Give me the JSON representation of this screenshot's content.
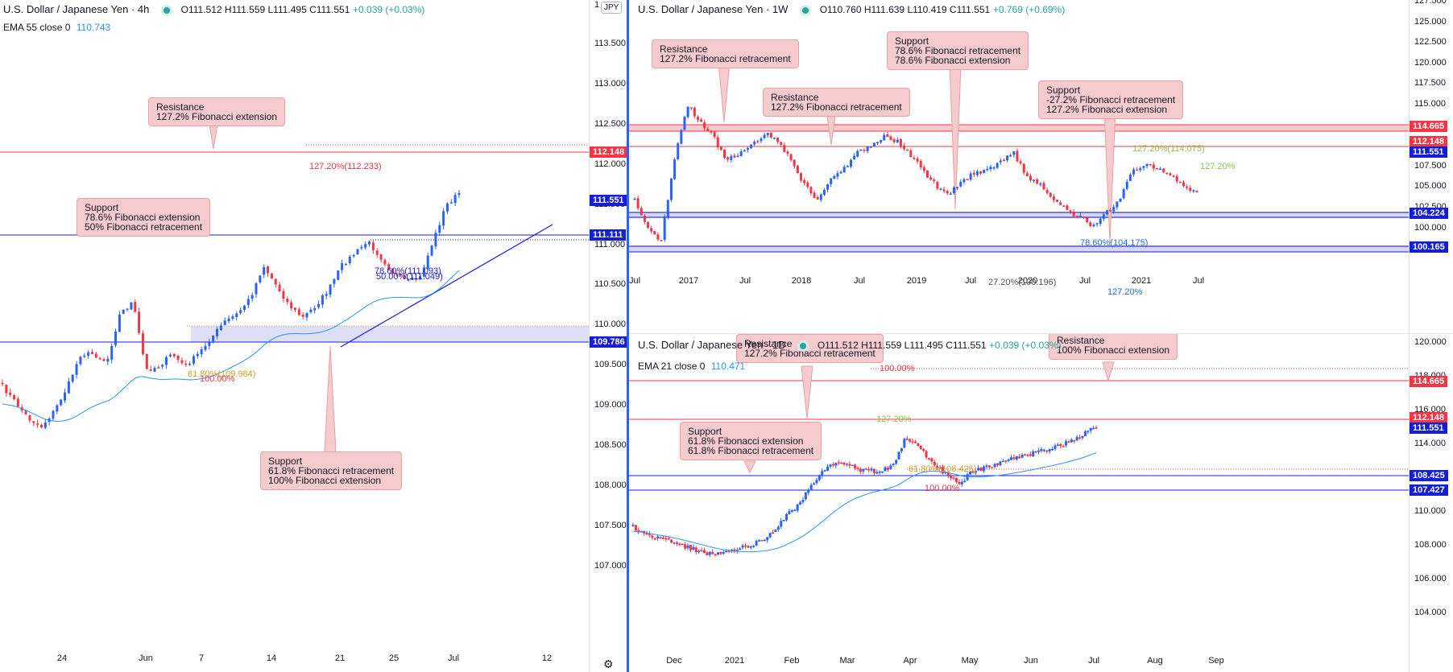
{
  "left_chart": {
    "title": "U.S. Dollar / Japanese Yen · 4h",
    "ohlc": "O111.512 H111.559 L111.495 C111.551",
    "change": "+0.039 (+0.03%)",
    "ema_label": "EMA 55 close 0",
    "ema_value": "110.743",
    "currency_badge": "JPY",
    "y_ticks": [
      "113.500",
      "113.000",
      "112.500",
      "112.000",
      "111.500",
      "111.000",
      "110.500",
      "110.000",
      "109.500",
      "109.000",
      "108.500",
      "108.000",
      "107.500",
      "107.000"
    ],
    "y_top_tick": "1",
    "x_ticks": [
      "24",
      "Jun",
      "7",
      "14",
      "21",
      "25",
      "Jul",
      "12"
    ],
    "price_tags": [
      {
        "value": "112.148",
        "color": "red"
      },
      {
        "value": "111.551",
        "color": "navy"
      },
      {
        "value": "111.111",
        "color": "navy"
      },
      {
        "value": "109.786",
        "color": "navy"
      }
    ],
    "fib_labels": {
      "ext_127": "127.20%(112.233)",
      "fib_786": "78.60%(111.093)",
      "fib_50": "50.00%(111.049)",
      "fib_618": "61.80%(109.984)",
      "fib_100": "100.00%"
    },
    "callouts": [
      {
        "line1": "Resistance",
        "line2": "127.2% Fibonacci extension"
      },
      {
        "line1": "Support",
        "line2": "78.6% Fibonacci extension",
        "line3": "50% Fibonacci retracement"
      },
      {
        "line1": "Support",
        "line2": "61.8% Fibonacci retracement",
        "line3": "100% Fibonacci extension"
      }
    ]
  },
  "weekly_chart": {
    "title": "U.S. Dollar / Japanese Yen · 1W",
    "ohlc": "O110.760 H111.639 L110.419 C111.551",
    "change": "+0.769 (+0.69%)",
    "y_ticks": [
      "127.500",
      "125.000",
      "122.500",
      "120.000",
      "117.500",
      "115.000",
      "112.500",
      "110.000",
      "107.500",
      "105.000",
      "102.500",
      "100.000",
      "97.500"
    ],
    "x_ticks": [
      "Jul",
      "2017",
      "Jul",
      "2018",
      "Jul",
      "2019",
      "Jul",
      "2020",
      "Jul",
      "2021",
      "Jul"
    ],
    "price_tags": [
      {
        "value": "114.665",
        "color": "red"
      },
      {
        "value": "112.148",
        "color": "red"
      },
      {
        "value": "111.551",
        "color": "navy"
      },
      {
        "value": "104.224",
        "color": "navy"
      },
      {
        "value": "100.165",
        "color": "navy"
      }
    ],
    "fib_labels": {
      "r127": "127.20%(114.075)",
      "e127": "127.20%",
      "fib_786": "78.60%(104.175)",
      "fib_27": "27.20%(100.196)",
      "e127b": "127.20%"
    },
    "callouts": [
      {
        "line1": "Resistance",
        "line2": "127.2% Fibonacci retracement"
      },
      {
        "line1": "Resistance",
        "line2": "127.2% Fibonacci retracement"
      },
      {
        "line1": "Support",
        "line2": "78.6% Fibonacci retracement",
        "line3": "78.6% Fibonacci extension"
      },
      {
        "line1": "Support",
        "line2": "-27.2% Fibonacci retracement",
        "line3": "127.2% Fibonacci extension"
      }
    ]
  },
  "daily_chart": {
    "title": "U.S. Dollar / Japanese Yen · 1D",
    "ohlc": "O111.512 H111.559 L111.495 C111.551",
    "change": "+0.039 (+0.03%)",
    "ema_label": "EMA 21 close 0",
    "ema_value": "110.471",
    "y_ticks": [
      "120.000",
      "118.000",
      "116.000",
      "114.000",
      "112.000",
      "110.000",
      "108.000",
      "106.000",
      "104.000"
    ],
    "x_ticks": [
      "Dec",
      "2021",
      "Feb",
      "Mar",
      "Apr",
      "May",
      "Jun",
      "Jul",
      "Aug",
      "Sep"
    ],
    "price_tags": [
      {
        "value": "114.665",
        "color": "red"
      },
      {
        "value": "112.148",
        "color": "red"
      },
      {
        "value": "111.551",
        "color": "navy"
      },
      {
        "value": "108.425",
        "color": "navy"
      },
      {
        "value": "107.427",
        "color": "navy"
      }
    ],
    "fib_labels": {
      "fib_100_top": "100.00%",
      "fib_127": "127.20%",
      "fib_618": "61.80%(108.425)",
      "fib_100_bot": "100.00%"
    },
    "callouts": [
      {
        "line1": "Resistance",
        "line2": "127.2% Fibonacci retracement"
      },
      {
        "line1": "Resistance",
        "line2": "100% Fibonacci extension"
      },
      {
        "line1": "Support",
        "line2": "61.8% Fibonacci extension",
        "line3": "61.8% Fibonacci retracement"
      }
    ]
  },
  "colors": {
    "up": "#2962ff",
    "down": "#f23645",
    "ema": "#2196f3",
    "fib_red": "#f23645",
    "fib_blue": "#1a1ae6"
  }
}
